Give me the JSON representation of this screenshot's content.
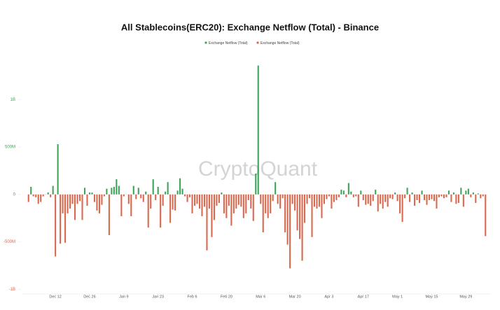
{
  "chart_data": {
    "type": "bar",
    "title": "All Stablecoins(ERC20): Exchange Netflow (Total) - Binance",
    "legend": [
      {
        "name": "Exchange Netflow (Total)",
        "color": "#3da45a"
      },
      {
        "name": "Exchange Netflow (Total)",
        "color": "#d8694f"
      }
    ],
    "watermark": "CryptoQuant",
    "categories": [
      null,
      null,
      null,
      null,
      null,
      null,
      null,
      null,
      null,
      null,
      null,
      "Dec 12",
      null,
      null,
      null,
      null,
      null,
      null,
      null,
      null,
      null,
      null,
      null,
      null,
      null,
      "Dec 26",
      null,
      null,
      null,
      null,
      null,
      null,
      null,
      null,
      null,
      null,
      null,
      null,
      null,
      "Jan 9",
      null,
      null,
      null,
      null,
      null,
      null,
      null,
      null,
      null,
      null,
      null,
      null,
      null,
      "Jan 23",
      null,
      null,
      null,
      null,
      null,
      null,
      null,
      null,
      null,
      null,
      null,
      null,
      null,
      "Feb 6",
      null,
      null,
      null,
      null,
      null,
      null,
      null,
      null,
      null,
      null,
      null,
      null,
      null,
      "Feb 20",
      null,
      null,
      null,
      null,
      null,
      null,
      null,
      null,
      null,
      null,
      null,
      null,
      null,
      "Mar 6",
      null,
      null,
      null,
      null,
      null,
      null,
      null,
      null,
      null,
      null,
      null,
      null,
      null,
      "Mar 20",
      null,
      null,
      null,
      null,
      null,
      null,
      null,
      null,
      null,
      null,
      null,
      null,
      null,
      "Apr 3",
      null,
      null,
      null,
      null,
      null,
      null,
      null,
      null,
      null,
      null,
      null,
      null,
      null,
      "Apr 17",
      null,
      null,
      null,
      null,
      null,
      null,
      null,
      null,
      null,
      null,
      null,
      null,
      null,
      "May 1",
      null,
      null,
      null,
      null,
      null,
      null,
      null,
      null,
      null,
      null,
      null,
      null,
      null,
      "May 15",
      null,
      null,
      null,
      null,
      null,
      null,
      null,
      null,
      null,
      null,
      null,
      null,
      null,
      "May 29",
      null,
      null,
      null,
      null,
      null,
      null,
      null,
      null
    ],
    "values": [
      -80,
      80,
      -20,
      -30,
      -100,
      -80,
      -20,
      0,
      20,
      -30,
      90,
      -655,
      530,
      -520,
      -200,
      -510,
      -200,
      -150,
      -100,
      -270,
      -100,
      -70,
      -270,
      70,
      -120,
      20,
      20,
      -80,
      -170,
      -200,
      -110,
      -20,
      60,
      -430,
      70,
      80,
      160,
      90,
      -230,
      -20,
      0,
      -100,
      -230,
      90,
      -50,
      70,
      -40,
      -80,
      30,
      -350,
      -150,
      160,
      -60,
      80,
      -350,
      -120,
      30,
      130,
      -300,
      -160,
      -170,
      40,
      170,
      60,
      -20,
      -80,
      -30,
      -200,
      -120,
      -100,
      -150,
      -230,
      -130,
      -590,
      -150,
      -450,
      -270,
      -120,
      -90,
      20,
      -200,
      -250,
      -120,
      -330,
      -200,
      -150,
      -110,
      -130,
      -250,
      -200,
      -60,
      -150,
      -280,
      220,
      1360,
      -100,
      -400,
      -200,
      -250,
      -200,
      -70,
      130,
      -100,
      -150,
      -40,
      -400,
      -530,
      -780,
      -100,
      -170,
      -380,
      -470,
      -700,
      -300,
      -100,
      -40,
      -450,
      -130,
      -150,
      -130,
      -250,
      -100,
      -50,
      -20,
      -150,
      -80,
      -60,
      -30,
      50,
      40,
      -30,
      120,
      30,
      -30,
      -20,
      -130,
      40,
      -60,
      -110,
      -100,
      -120,
      -70,
      50,
      -180,
      -100,
      -150,
      -80,
      -130,
      -40,
      -50,
      20,
      -70,
      -200,
      -290,
      -40,
      70,
      -80,
      20,
      -120,
      -60,
      -90,
      40,
      -60,
      -110,
      -60,
      -50,
      -70,
      -150,
      -30,
      -20,
      -40,
      -30,
      40,
      -80,
      20,
      -100,
      -90,
      70,
      -130,
      40,
      60,
      -30,
      20,
      -90,
      10,
      -40,
      -20,
      -440
    ],
    "ylim": [
      -1050,
      1520
    ],
    "yticks": [
      {
        "value": -1000,
        "label": "-1B"
      },
      {
        "value": -500,
        "label": "-500M"
      },
      0,
      {
        "value": 500,
        "label": "500M"
      },
      {
        "value": 1000,
        "label": "1B"
      }
    ],
    "grid": false
  }
}
